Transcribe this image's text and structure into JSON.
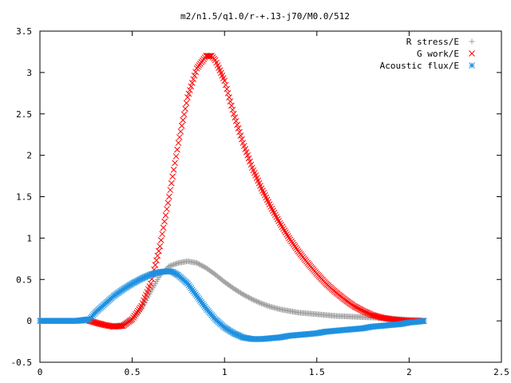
{
  "chart_data": {
    "type": "scatter",
    "title": "m2/n1.5/q1.0/r-+.13-j70/M0.0/512",
    "xlabel": "",
    "ylabel": "",
    "xlim": [
      0,
      2.5
    ],
    "ylim": [
      -0.5,
      3.5
    ],
    "xticks": [
      "0",
      "0.5",
      "1",
      "1.5",
      "2",
      "2.5"
    ],
    "yticks": [
      "-0.5",
      "0",
      "0.5",
      "1",
      "1.5",
      "2",
      "2.5",
      "3",
      "3.5"
    ],
    "legend_position": "top-right",
    "grid": false,
    "series": [
      {
        "name": "R stress/E",
        "marker": "plus",
        "color": "#a0a0a0",
        "x": [
          0.0,
          0.1,
          0.2,
          0.27,
          0.3,
          0.35,
          0.4,
          0.45,
          0.5,
          0.55,
          0.6,
          0.65,
          0.7,
          0.75,
          0.8,
          0.85,
          0.9,
          0.95,
          1.0,
          1.05,
          1.1,
          1.15,
          1.2,
          1.25,
          1.3,
          1.35,
          1.4,
          1.45,
          1.5,
          1.55,
          1.6,
          1.65,
          1.7,
          1.75,
          1.8,
          1.85,
          1.9,
          1.95,
          2.0,
          2.05,
          2.08
        ],
        "y": [
          0.0,
          0.0,
          0.0,
          0.0,
          -0.03,
          -0.05,
          -0.06,
          -0.05,
          0.02,
          0.15,
          0.35,
          0.55,
          0.66,
          0.7,
          0.72,
          0.7,
          0.64,
          0.56,
          0.47,
          0.39,
          0.32,
          0.26,
          0.21,
          0.17,
          0.14,
          0.12,
          0.1,
          0.09,
          0.08,
          0.07,
          0.06,
          0.055,
          0.05,
          0.045,
          0.04,
          0.035,
          0.03,
          0.02,
          0.015,
          0.01,
          0.0
        ]
      },
      {
        "name": "G work/E",
        "marker": "x",
        "color": "#ff0000",
        "x": [
          0.27,
          0.3,
          0.35,
          0.4,
          0.45,
          0.5,
          0.55,
          0.6,
          0.65,
          0.7,
          0.75,
          0.8,
          0.85,
          0.9,
          0.93,
          0.95,
          1.0,
          1.05,
          1.1,
          1.15,
          1.2,
          1.25,
          1.3,
          1.35,
          1.4,
          1.45,
          1.5,
          1.55,
          1.6,
          1.65,
          1.7,
          1.75,
          1.8,
          1.85,
          1.9,
          1.95,
          2.0,
          2.05,
          2.08
        ],
        "y": [
          0.0,
          -0.02,
          -0.05,
          -0.07,
          -0.06,
          0.02,
          0.18,
          0.45,
          0.9,
          1.5,
          2.15,
          2.7,
          3.05,
          3.2,
          3.2,
          3.15,
          2.9,
          2.5,
          2.15,
          1.85,
          1.6,
          1.38,
          1.18,
          1.0,
          0.84,
          0.7,
          0.57,
          0.45,
          0.35,
          0.26,
          0.18,
          0.12,
          0.07,
          0.04,
          0.02,
          0.01,
          0.0,
          0.0,
          0.0
        ]
      },
      {
        "name": "Acoustic flux/E",
        "marker": "star",
        "color": "#1e90e0",
        "x": [
          0.0,
          0.1,
          0.2,
          0.27,
          0.3,
          0.35,
          0.4,
          0.45,
          0.5,
          0.55,
          0.6,
          0.65,
          0.7,
          0.72,
          0.75,
          0.8,
          0.85,
          0.9,
          0.95,
          1.0,
          1.05,
          1.1,
          1.15,
          1.2,
          1.25,
          1.3,
          1.35,
          1.4,
          1.45,
          1.5,
          1.55,
          1.6,
          1.65,
          1.7,
          1.75,
          1.8,
          1.85,
          1.9,
          1.95,
          2.0,
          2.05,
          2.08
        ],
        "y": [
          0.0,
          0.0,
          0.0,
          0.02,
          0.1,
          0.2,
          0.3,
          0.38,
          0.45,
          0.51,
          0.56,
          0.59,
          0.6,
          0.59,
          0.55,
          0.45,
          0.3,
          0.15,
          0.02,
          -0.08,
          -0.15,
          -0.2,
          -0.22,
          -0.22,
          -0.21,
          -0.2,
          -0.18,
          -0.17,
          -0.16,
          -0.15,
          -0.13,
          -0.12,
          -0.11,
          -0.1,
          -0.09,
          -0.07,
          -0.06,
          -0.05,
          -0.04,
          -0.02,
          -0.01,
          0.0
        ]
      }
    ]
  }
}
